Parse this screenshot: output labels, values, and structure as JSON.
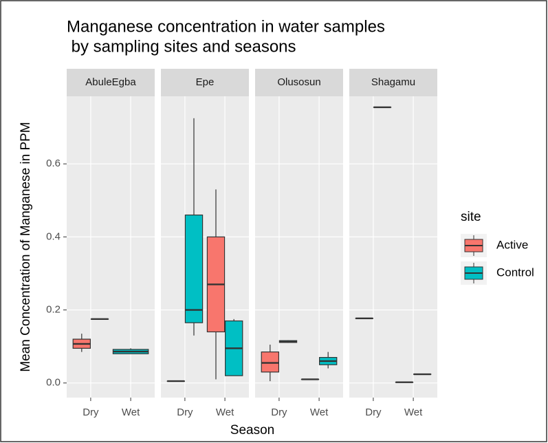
{
  "chart_data": {
    "type": "box",
    "title": [
      "Manganese concentration in water samples",
      " by sampling sites and seasons"
    ],
    "x_label": "Season",
    "y_label": "Mean Concentration of Manganese in PPM",
    "legend_title": "site",
    "facets": [
      "AbuleEgba",
      "Epe",
      "Olusosun",
      "Shagamu"
    ],
    "categories": [
      "Dry",
      "Wet"
    ],
    "ylim": [
      -0.04,
      0.785
    ],
    "yticks": [
      {
        "value": 0,
        "label": "0.0"
      },
      0.2,
      0.4,
      0.6
    ],
    "grid": true,
    "series": [
      {
        "name": "Active",
        "color": "#f8766d",
        "data": [
          [
            {
              "min": 0.085,
              "q1": 0.095,
              "median": 0.107,
              "q3": 0.12,
              "max": 0.135
            },
            null
          ],
          [
            {
              "min": 0.005,
              "q1": 0.005,
              "median": 0.005,
              "q3": 0.005,
              "max": 0.005
            },
            {
              "min": 0.01,
              "q1": 0.14,
              "median": 0.27,
              "q3": 0.4,
              "max": 0.53
            }
          ],
          [
            {
              "min": 0.005,
              "q1": 0.03,
              "median": 0.055,
              "q3": 0.085,
              "max": 0.105
            },
            {
              "min": 0.01,
              "q1": 0.01,
              "median": 0.01,
              "q3": 0.01,
              "max": 0.01
            }
          ],
          [
            {
              "min": 0.177,
              "q1": 0.177,
              "median": 0.177,
              "q3": 0.177,
              "max": 0.177
            },
            {
              "min": 0.002,
              "q1": 0.002,
              "median": 0.002,
              "q3": 0.002,
              "max": 0.002
            }
          ]
        ]
      },
      {
        "name": "Control",
        "color": "#00bfc4",
        "data": [
          [
            {
              "min": 0.175,
              "q1": 0.175,
              "median": 0.175,
              "q3": 0.175,
              "max": 0.175
            },
            {
              "min": 0.08,
              "q1": 0.08,
              "median": 0.086,
              "q3": 0.092,
              "max": 0.095
            }
          ],
          [
            {
              "min": 0.13,
              "q1": 0.165,
              "median": 0.2,
              "q3": 0.46,
              "max": 0.725
            },
            {
              "min": 0.02,
              "q1": 0.02,
              "median": 0.095,
              "q3": 0.17,
              "max": 0.175
            }
          ],
          [
            {
              "min": 0.11,
              "q1": 0.111,
              "median": 0.113,
              "q3": 0.116,
              "max": 0.117
            },
            {
              "min": 0.04,
              "q1": 0.05,
              "median": 0.06,
              "q3": 0.07,
              "max": 0.085
            }
          ],
          [
            {
              "min": 0.755,
              "q1": 0.755,
              "median": 0.755,
              "q3": 0.755,
              "max": 0.755
            },
            {
              "min": 0.024,
              "q1": 0.024,
              "median": 0.024,
              "q3": 0.024,
              "max": 0.024
            }
          ]
        ]
      }
    ]
  }
}
